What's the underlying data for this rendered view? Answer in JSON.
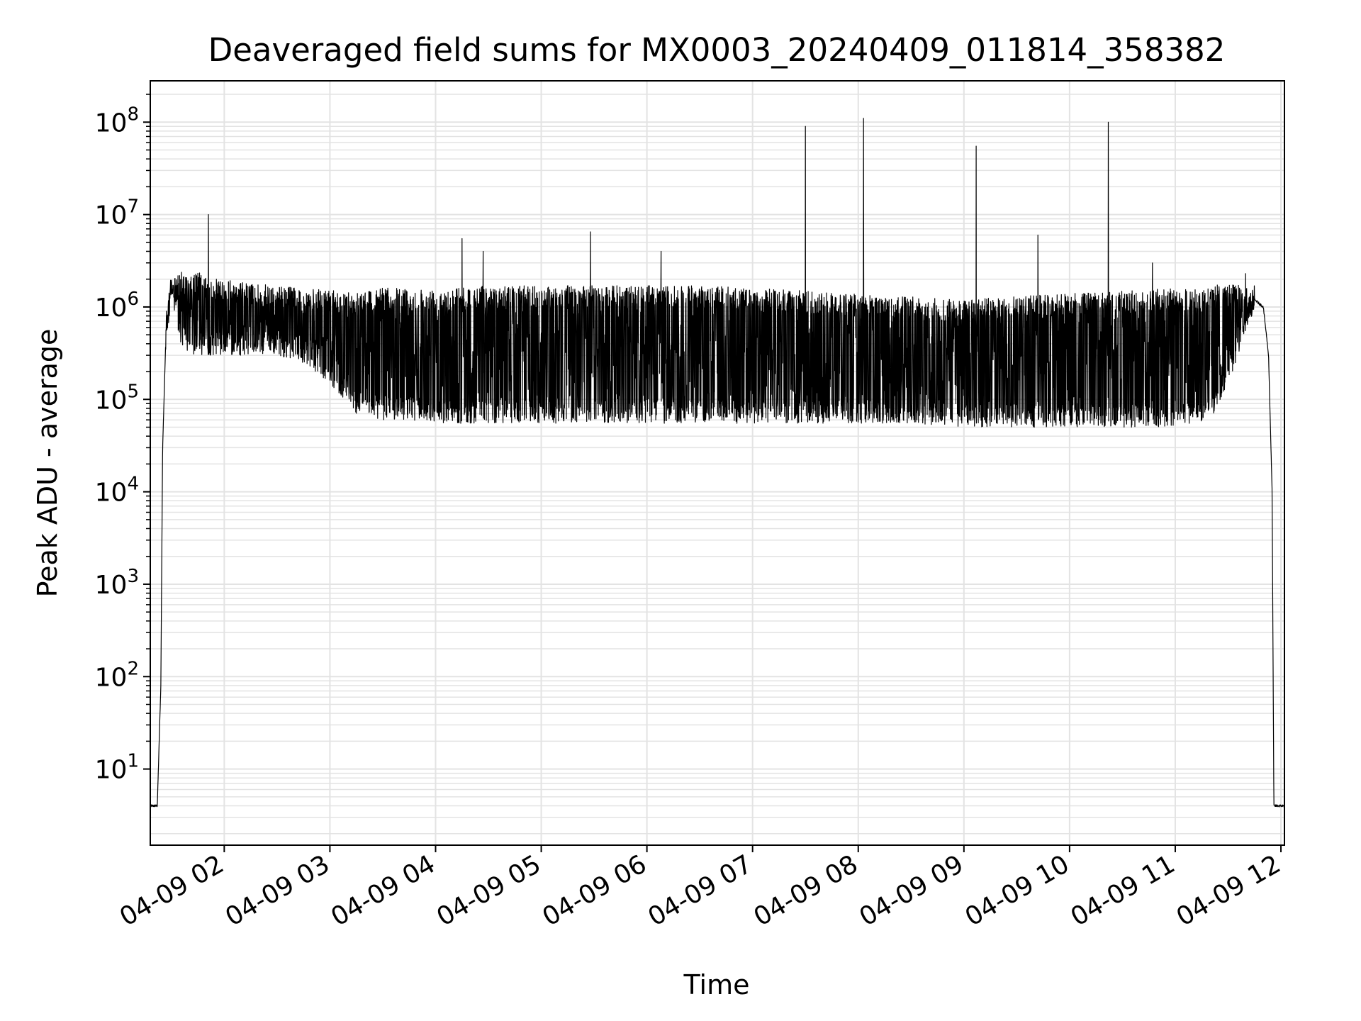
{
  "chart_data": {
    "type": "line",
    "title": "Deaveraged field sums for MX0003_20240409_011814_358382",
    "xlabel": "Time",
    "ylabel": "Peak ADU - average",
    "yscale": "log",
    "ylim": [
      1.5,
      280000000
    ],
    "xlim": [
      "04-09 01:18",
      "04-09 12:02"
    ],
    "grid": true,
    "grid_minor": true,
    "line_color": "#000000",
    "grid_color": "#e3e3e3",
    "x_ticks": [
      "04-09 02",
      "04-09 03",
      "04-09 04",
      "04-09 05",
      "04-09 06",
      "04-09 07",
      "04-09 08",
      "04-09 09",
      "04-09 10",
      "04-09 11",
      "04-09 12"
    ],
    "y_ticks": [
      {
        "base": "10",
        "exp": "1"
      },
      {
        "base": "10",
        "exp": "2"
      },
      {
        "base": "10",
        "exp": "3"
      },
      {
        "base": "10",
        "exp": "4"
      },
      {
        "base": "10",
        "exp": "5"
      },
      {
        "base": "10",
        "exp": "6"
      },
      {
        "base": "10",
        "exp": "7"
      },
      {
        "base": "10",
        "exp": "8"
      }
    ],
    "series": [
      {
        "x": [
          "04-09 01:18",
          "04-09 01:22",
          "04-09 01:24",
          "04-09 01:25",
          "04-09 01:27",
          "04-09 01:30",
          "04-09 01:35",
          "04-09 01:40",
          "04-09 01:45",
          "04-09 01:50",
          "04-09 02:00",
          "04-09 02:15",
          "04-09 02:30",
          "04-09 02:45",
          "04-09 03:00",
          "04-09 03:15",
          "04-09 03:30",
          "04-09 03:45",
          "04-09 04:00",
          "04-09 04:30",
          "04-09 05:00",
          "04-09 05:30",
          "04-09 06:00",
          "04-09 06:30",
          "04-09 07:00",
          "04-09 07:30",
          "04-09 08:00",
          "04-09 08:30",
          "04-09 09:00",
          "04-09 09:30",
          "04-09 10:00",
          "04-09 10:30",
          "04-09 11:00",
          "04-09 11:20",
          "04-09 11:30",
          "04-09 11:40",
          "04-09 11:45",
          "04-09 11:50",
          "04-09 11:53",
          "04-09 11:55",
          "04-09 11:56",
          "04-09 12:02"
        ],
        "y": [
          4,
          4,
          80,
          30000,
          600000,
          1700000,
          1200000,
          700000,
          1000000,
          900000,
          1000000,
          900000,
          800000,
          600000,
          400000,
          250000,
          200000,
          170000,
          160000,
          250000,
          350000,
          400000,
          420000,
          400000,
          380000,
          350000,
          300000,
          250000,
          200000,
          150000,
          140000,
          140000,
          130000,
          180000,
          400000,
          800000,
          1200000,
          1000000,
          300000,
          10000,
          4,
          4
        ],
        "lower": [
          4,
          4,
          80,
          30000,
          500000,
          1400000,
          400000,
          300000,
          300000,
          300000,
          300000,
          300000,
          300000,
          250000,
          150000,
          70000,
          60000,
          60000,
          55000,
          55000,
          55000,
          55000,
          55000,
          55000,
          55000,
          55000,
          55000,
          55000,
          50000,
          50000,
          50000,
          50000,
          50000,
          60000,
          150000,
          500000,
          1000000,
          900000,
          300000,
          10000,
          4,
          4
        ],
        "upper": [
          4,
          4,
          80,
          30000,
          700000,
          2000000,
          2500000,
          2000000,
          2500000,
          2000000,
          2000000,
          1800000,
          1700000,
          1600000,
          1500000,
          1500000,
          1600000,
          1600000,
          1600000,
          1700000,
          1700000,
          1700000,
          1700000,
          1700000,
          1600000,
          1500000,
          1400000,
          1300000,
          1200000,
          1300000,
          1400000,
          1500000,
          1600000,
          1700000,
          1800000,
          1700000,
          1300000,
          1100000,
          300000,
          10000,
          4,
          4
        ]
      }
    ],
    "spikes": [
      {
        "x": "04-09 01:51",
        "y": 10000000
      },
      {
        "x": "04-09 04:15",
        "y": 5500000
      },
      {
        "x": "04-09 04:27",
        "y": 4000000
      },
      {
        "x": "04-09 05:28",
        "y": 6500000
      },
      {
        "x": "04-09 06:08",
        "y": 4000000
      },
      {
        "x": "04-09 07:30",
        "y": 90000000
      },
      {
        "x": "04-09 08:03",
        "y": 110000000
      },
      {
        "x": "04-09 09:07",
        "y": 55000000
      },
      {
        "x": "04-09 09:42",
        "y": 6000000
      },
      {
        "x": "04-09 10:22",
        "y": 100000000
      },
      {
        "x": "04-09 10:47",
        "y": 3000000
      },
      {
        "x": "04-09 11:40",
        "y": 2300000
      }
    ]
  }
}
